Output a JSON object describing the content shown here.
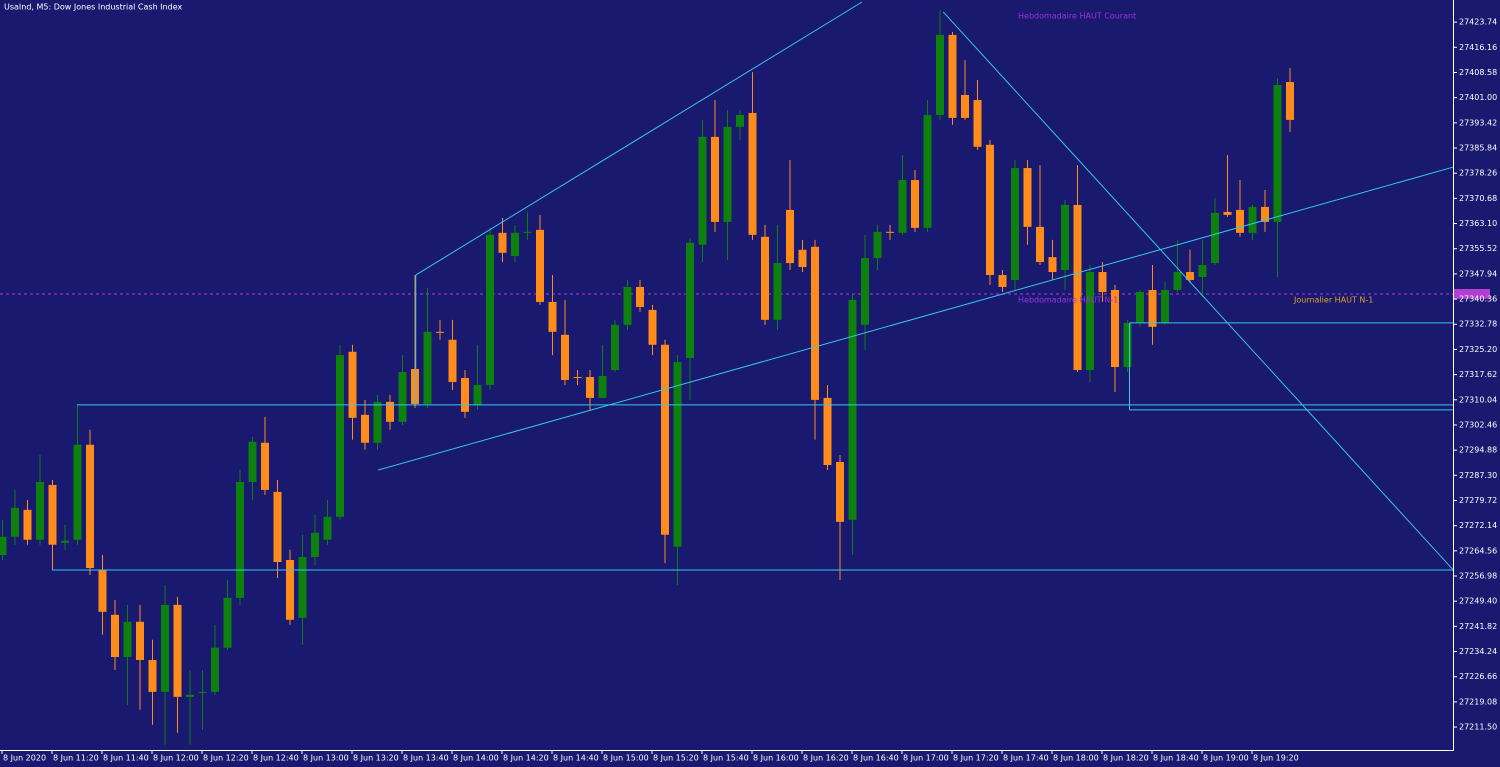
{
  "chart_data": {
    "type": "candlestick",
    "title": "UsaInd, M5:  Dow Jones Industrial Cash Index",
    "categories": [
      "8 Jun 2020",
      null,
      null,
      null,
      "8 Jun 11:20",
      null,
      null,
      null,
      "8 Jun 11:40",
      null,
      null,
      null,
      "8 Jun 12:00",
      null,
      null,
      null,
      "8 Jun 12:20",
      null,
      null,
      null,
      "8 Jun 12:40",
      null,
      null,
      null,
      "8 Jun 13:00",
      null,
      null,
      null,
      "8 Jun 13:20",
      null,
      null,
      null,
      "8 Jun 13:40",
      null,
      null,
      null,
      "8 Jun 14:00",
      null,
      null,
      null,
      "8 Jun 14:20",
      null,
      null,
      null,
      "8 Jun 14:40",
      null,
      null,
      null,
      "8 Jun 15:00",
      null,
      null,
      null,
      "8 Jun 15:20",
      null,
      null,
      null,
      "8 Jun 15:40",
      null,
      null,
      null,
      "8 Jun 16:00",
      null,
      null,
      null,
      "8 Jun 16:20",
      null,
      null,
      null,
      "8 Jun 16:40",
      null,
      null,
      null,
      "8 Jun 17:00",
      null,
      null,
      null,
      "8 Jun 17:20",
      null,
      null,
      null,
      "8 Jun 17:40",
      null,
      null,
      null,
      "8 Jun 18:00",
      null,
      null,
      null,
      "8 Jun 18:20",
      null,
      null,
      null,
      "8 Jun 18:40",
      null,
      null,
      null,
      "8 Jun 19:00",
      null,
      null,
      null,
      "8 Jun 19:20",
      null,
      null,
      null
    ],
    "open": [
      27263.3,
      27268.8,
      27276.9,
      27267.9,
      27284.4,
      27267.0,
      27267.9,
      27296.5,
      27258.8,
      27245.3,
      27232.6,
      27243.2,
      27231.7,
      27222.1,
      27248.3,
      27220.6,
      27221.8,
      27222.1,
      27235.4,
      27250.4,
      27285.3,
      27297.1,
      27282.3,
      27261.8,
      27244.4,
      27262.7,
      27267.9,
      27274.8,
      27324.5,
      27305.5,
      27297.1,
      27309.4,
      27303.4,
      27319.3,
      27308.8,
      27330.5,
      27328.1,
      27316.6,
      27308.5,
      27314.5,
      27360.3,
      27353.3,
      27360.3,
      27361.2,
      27339.5,
      27329.6,
      27316.9,
      27316.9,
      27310.6,
      27319.0,
      27332.6,
      27344.0,
      27337.1,
      27326.6,
      27265.8,
      27322.6,
      27356.7,
      27389.2,
      27363.6,
      27392.2,
      27396.4,
      27359.1,
      27334.1,
      27367.2,
      27355.2,
      27356.1,
      27310.6,
      27291.3,
      27273.9,
      27332.6,
      27352.7,
      27360.6,
      27360.3,
      27376.2,
      27361.8,
      27395.8,
      27419.9,
      27401.8,
      27400.3,
      27386.8,
      27347.6,
      27346.1,
      27379.8,
      27362.1,
      27353.0,
      27349.1,
      27368.7,
      27319.0,
      27348.5,
      27343.1,
      27319.9,
      27333.2,
      27343.1,
      27333.2,
      27343.1,
      27348.5,
      27347.0,
      27351.2,
      27366.6,
      27367.2,
      27360.3,
      27368.1,
      27363.6,
      27405.7
    ],
    "high": [
      27273.9,
      27282.9,
      27279.9,
      27293.4,
      27285.9,
      27272.4,
      27308.5,
      27301.0,
      27263.3,
      27249.8,
      27248.3,
      27248.3,
      27237.8,
      27254.3,
      27250.7,
      27228.7,
      27228.7,
      27242.3,
      27255.8,
      27288.9,
      27298.9,
      27304.9,
      27285.9,
      27264.9,
      27269.4,
      27275.4,
      27279.9,
      27326.6,
      27326.6,
      27310.0,
      27311.5,
      27311.5,
      27323.5,
      27347.6,
      27343.7,
      27334.1,
      27334.1,
      27319.0,
      27326.6,
      27361.8,
      27364.8,
      27362.7,
      27366.6,
      27365.7,
      27347.6,
      27340.1,
      27319.0,
      27319.0,
      27326.6,
      27334.1,
      27346.1,
      27346.1,
      27338.6,
      27328.1,
      27323.5,
      27358.8,
      27394.3,
      27400.3,
      27397.3,
      27397.3,
      27408.7,
      27362.7,
      27362.7,
      27382.2,
      27358.2,
      27358.2,
      27314.5,
      27293.4,
      27341.6,
      27359.7,
      27362.7,
      27362.7,
      27383.7,
      27379.2,
      27400.3,
      27427.4,
      27420.8,
      27412.3,
      27406.3,
      27388.3,
      27349.1,
      27382.2,
      27382.2,
      27380.7,
      27358.2,
      27370.2,
      27380.7,
      27350.6,
      27351.5,
      27344.6,
      27334.1,
      27343.1,
      27350.6,
      27345.5,
      27358.2,
      27355.2,
      27358.2,
      27370.8,
      27383.7,
      27376.2,
      27368.7,
      27373.2,
      27406.9,
      27409.9
    ],
    "low": [
      27261.8,
      27266.4,
      27266.4,
      27266.4,
      27258.8,
      27264.9,
      27266.4,
      27257.3,
      27239.3,
      27228.7,
      27218.2,
      27216.7,
      27212.2,
      27206.2,
      27209.8,
      27206.2,
      27210.7,
      27221.2,
      27234.8,
      27248.3,
      27279.9,
      27281.4,
      27256.4,
      27242.3,
      27236.3,
      27260.3,
      27266.4,
      27273.9,
      27298.0,
      27295.0,
      27295.0,
      27301.0,
      27302.5,
      27307.6,
      27307.6,
      27328.1,
      27313.0,
      27304.6,
      27307.0,
      27313.0,
      27351.5,
      27351.5,
      27358.2,
      27338.6,
      27323.5,
      27314.5,
      27314.5,
      27307.0,
      27310.6,
      27318.4,
      27331.1,
      27336.5,
      27323.5,
      27260.9,
      27254.3,
      27310.0,
      27351.5,
      27360.6,
      27352.1,
      27388.3,
      27358.2,
      27332.6,
      27331.1,
      27349.1,
      27348.5,
      27298.0,
      27288.9,
      27255.8,
      27263.3,
      27325.1,
      27349.1,
      27358.2,
      27359.7,
      27360.6,
      27360.6,
      27394.3,
      27392.8,
      27394.3,
      27385.3,
      27344.6,
      27342.5,
      27343.1,
      27356.7,
      27350.6,
      27346.1,
      27343.1,
      27318.4,
      27315.4,
      27339.5,
      27312.4,
      27318.4,
      27332.0,
      27326.6,
      27332.6,
      27342.5,
      27345.2,
      27341.0,
      27350.6,
      27365.1,
      27359.1,
      27358.2,
      27360.6,
      27347.0,
      27390.7
    ],
    "close": [
      27268.8,
      27277.5,
      27267.9,
      27285.3,
      27266.4,
      27267.6,
      27296.5,
      27259.4,
      27246.2,
      27232.6,
      27243.2,
      27231.7,
      27222.1,
      27248.3,
      27220.6,
      27221.2,
      27222.1,
      27235.4,
      27250.4,
      27285.3,
      27297.4,
      27282.9,
      27261.2,
      27243.8,
      27262.7,
      27270.0,
      27274.8,
      27323.5,
      27304.6,
      27297.1,
      27309.4,
      27303.4,
      27318.4,
      27308.8,
      27330.5,
      27330.2,
      27315.4,
      27306.4,
      27314.5,
      27359.7,
      27354.3,
      27360.3,
      27360.6,
      27339.5,
      27330.5,
      27316.0,
      27316.6,
      27310.6,
      27317.2,
      27332.6,
      27344.0,
      27338.0,
      27326.6,
      27269.4,
      27321.4,
      27357.3,
      27389.2,
      27363.6,
      27392.2,
      27395.8,
      27359.7,
      27334.1,
      27351.2,
      27351.2,
      27350.0,
      27310.0,
      27290.4,
      27273.3,
      27340.1,
      27352.7,
      27360.6,
      27360.3,
      27376.2,
      27361.8,
      27395.8,
      27419.9,
      27394.9,
      27394.9,
      27386.2,
      27347.6,
      27344.0,
      27379.8,
      27362.1,
      27351.5,
      27348.5,
      27368.7,
      27319.0,
      27348.5,
      27342.5,
      27319.9,
      27333.2,
      27342.5,
      27332.0,
      27343.1,
      27348.5,
      27346.1,
      27350.6,
      27366.3,
      27365.7,
      27360.3,
      27368.1,
      27363.6,
      27404.8,
      27394.3
    ],
    "up_color": "#0d800d",
    "down_color": "#ff8c1a",
    "background": "#191970",
    "line_color": "#36c8e8",
    "ylim": [
      27204.6,
      27430.4
    ],
    "yticks": [
      27423.74,
      27416.16,
      27408.58,
      {
        "value": 27401,
        "label": "27401.00"
      },
      27393.42,
      27385.84,
      27378.26,
      27370.68,
      {
        "value": 27363.1,
        "label": "27363.10"
      },
      27355.52,
      27347.94,
      27340.36,
      27332.78,
      {
        "value": 27325.2,
        "label": "27325.20"
      },
      27317.62,
      27310.04,
      27302.46,
      27294.88,
      {
        "value": 27287.3,
        "label": "27287.30"
      },
      27279.72,
      27272.14,
      27264.56,
      27256.98,
      {
        "value": 27249.4,
        "label": "27249.40"
      },
      27241.82,
      27234.24,
      27226.66,
      27219.08,
      {
        "value": 27211.5,
        "label": "27211.50"
      }
    ],
    "bid_line": 27341.9,
    "bid_color": "#b040d0",
    "trendlines": [
      {
        "x": [
          33.1,
          68.8
        ],
        "y": [
          27347.6,
          27429.8
        ]
      },
      {
        "x": [
          33.1,
          33.1
        ],
        "y": [
          27347.6,
          27308.5
        ]
      },
      {
        "x": [
          30.1,
          116.1
        ],
        "y": [
          27288.9,
          27380.1
        ]
      },
      {
        "x": [
          75.3,
          116.1
        ],
        "y": [
          27426.8,
          27258.8
        ]
      },
      {
        "x": [
          6.0,
          116.1
        ],
        "y": [
          27308.5,
          27308.5
        ]
      },
      {
        "x": [
          4.0,
          116.1
        ],
        "y": [
          27258.8,
          27258.8
        ]
      },
      {
        "x": [
          90.2,
          116.1
        ],
        "y": [
          27333.2,
          27333.2
        ]
      },
      {
        "x": [
          90.2,
          90.2
        ],
        "y": [
          27333.2,
          27307.0
        ]
      },
      {
        "x": [
          90.2,
          116.1
        ],
        "y": [
          27307.0,
          27307.0
        ]
      }
    ],
    "annotations": [
      {
        "text": "Hebdomadaire HAUT Courant",
        "color": "#a030e0"
      },
      {
        "text": "Hebdomadaire HAUT N-1",
        "color": "#a030e0"
      },
      {
        "text": "Journalier HAUT N-1",
        "color": "#e0a020"
      }
    ]
  }
}
